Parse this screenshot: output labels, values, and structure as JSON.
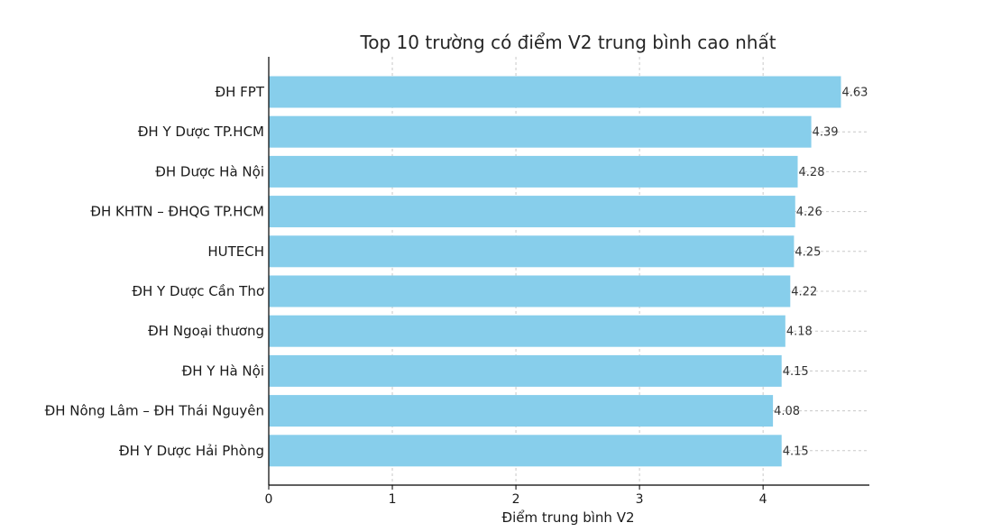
{
  "chart_data": {
    "type": "bar",
    "orientation": "horizontal",
    "title": "Top 10 trường có điểm V2 trung bình cao nhất",
    "xlabel": "Điểm trung bình V2",
    "ylabel": "",
    "xlim": [
      0,
      4.86
    ],
    "xticks": [
      "0",
      "1",
      "2",
      "3",
      "4"
    ],
    "grid": true,
    "categories": [
      "ĐH FPT",
      "ĐH Y Dược TP.HCM",
      "ĐH Dược Hà Nội",
      "ĐH KHTN – ĐHQG TP.HCM",
      "HUTECH",
      "ĐH Y Dược Cần Thơ",
      "ĐH Ngoại thương",
      "ĐH Y Hà Nội",
      "ĐH Nông Lâm – ĐH Thái Nguyên",
      "ĐH Y Dược Hải Phòng"
    ],
    "values": [
      4.63,
      4.39,
      4.28,
      4.26,
      4.25,
      4.22,
      4.18,
      4.15,
      4.08,
      4.15
    ],
    "value_labels": [
      "4.63",
      "4.39",
      "4.28",
      "4.26",
      "4.25",
      "4.22",
      "4.18",
      "4.15",
      "4.08",
      "4.15"
    ],
    "bar_color": "#87CEEB"
  }
}
